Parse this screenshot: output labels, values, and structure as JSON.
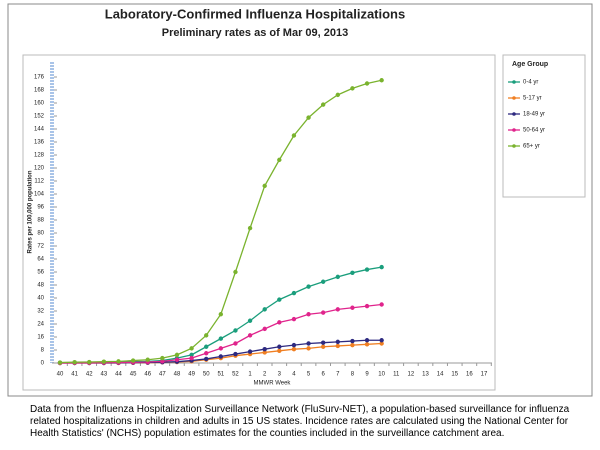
{
  "chart_data": {
    "type": "line",
    "title": "Laboratory-Confirmed Influenza Hospitalizations",
    "subtitle": "Preliminary rates as of Mar 09, 2013",
    "y_label": "Rates per 100,000 population",
    "x_label": "MMWR Week",
    "legend_title": "Age Group",
    "legend": "right",
    "categories": [
      "40",
      "41",
      "42",
      "43",
      "44",
      "45",
      "46",
      "47",
      "48",
      "49",
      "50",
      "51",
      "52",
      "1",
      "2",
      "3",
      "4",
      "5",
      "6",
      "7",
      "8",
      "9",
      "10",
      "11",
      "12",
      "13",
      "14",
      "15",
      "16",
      "17"
    ],
    "ylim": [
      0,
      180
    ],
    "yticks": [
      0,
      8,
      16,
      24,
      32,
      40,
      48,
      56,
      64,
      72,
      80,
      88,
      96,
      104,
      112,
      120,
      128,
      136,
      144,
      152,
      160,
      168,
      176
    ],
    "series": [
      {
        "name": "0-4 yr",
        "color": "#1a9e7c",
        "values": [
          0.2,
          0.3,
          0.4,
          0.5,
          0.6,
          0.8,
          1,
          1.5,
          3,
          5,
          10,
          15,
          20,
          26,
          33,
          39,
          43,
          47,
          50,
          53,
          55.5,
          57.5,
          59,
          null,
          null,
          null,
          null,
          null,
          null,
          null
        ]
      },
      {
        "name": "5-17 yr",
        "color": "#f07f22",
        "values": [
          0,
          0,
          0,
          0,
          0,
          0.1,
          0.2,
          0.4,
          0.6,
          1,
          2,
          3,
          4.5,
          5.5,
          6.5,
          7.5,
          8.5,
          9,
          10,
          10.5,
          11,
          11.5,
          12,
          null,
          null,
          null,
          null,
          null,
          null,
          null
        ]
      },
      {
        "name": "18-49 yr",
        "color": "#2e2a80",
        "values": [
          0,
          0,
          0,
          0,
          0.1,
          0.2,
          0.3,
          0.5,
          0.8,
          1.5,
          2.5,
          4,
          5.5,
          7,
          8.5,
          10,
          11,
          12,
          12.5,
          13,
          13.5,
          14,
          14,
          null,
          null,
          null,
          null,
          null,
          null,
          null
        ]
      },
      {
        "name": "50-64 yr",
        "color": "#e0248c",
        "values": [
          0,
          0.1,
          0.1,
          0.2,
          0.3,
          0.4,
          0.6,
          1,
          2,
          3,
          6,
          9,
          12,
          17,
          21,
          25,
          27,
          30,
          31,
          33,
          34,
          35,
          36,
          null,
          null,
          null,
          null,
          null,
          null,
          null
        ]
      },
      {
        "name": "65+ yr",
        "color": "#7ab32e",
        "values": [
          0.3,
          0.5,
          0.6,
          0.8,
          1,
          1.5,
          2,
          3,
          5,
          9,
          17,
          30,
          56,
          83,
          109,
          125,
          140,
          151,
          159,
          165,
          169,
          172,
          174,
          null,
          null,
          null,
          null,
          null,
          null,
          null
        ]
      }
    ]
  },
  "caption": "Data from the Influenza Hospitalization Surveillance Network (FluSurv-NET), a population-based surveillance for influenza related hospitalizations in children and adults in 15 US states.  Incidence rates are calculated using the National Center for Health Statistics' (NCHS) population estimates for the counties included in the surveillance catchment area."
}
